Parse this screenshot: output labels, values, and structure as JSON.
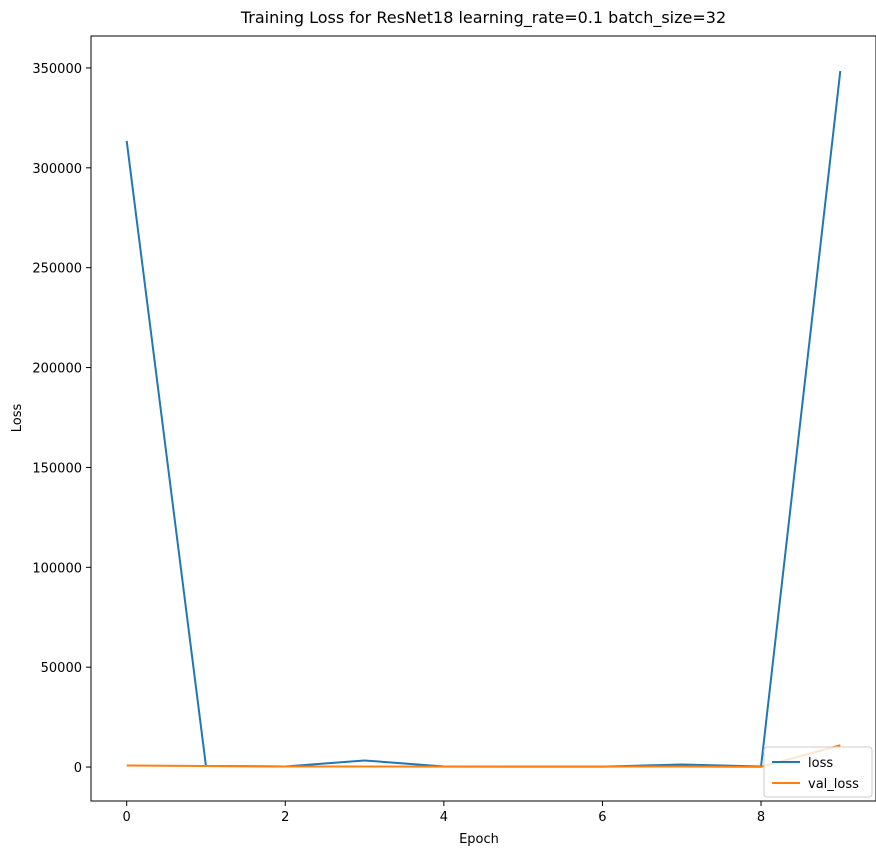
{
  "chart_data": {
    "type": "line",
    "title": "Training Loss for ResNet18 learning_rate=0.1 batch_size=32",
    "xlabel": "Epoch",
    "ylabel": "Loss",
    "x": [
      0,
      1,
      2,
      3,
      4,
      5,
      6,
      7,
      8,
      9
    ],
    "xlim": [
      -0.45,
      9.45
    ],
    "ylim": [
      -17000,
      366000
    ],
    "xticks": [
      0,
      2,
      4,
      6,
      8
    ],
    "yticks": [
      0,
      50000,
      100000,
      150000,
      200000,
      250000,
      300000,
      350000
    ],
    "grid": false,
    "legend_position": "lower right",
    "series": [
      {
        "name": "loss",
        "color": "#1f77b4",
        "values": [
          313500,
          500,
          300,
          3300,
          300,
          200,
          200,
          1300,
          300,
          348500
        ]
      },
      {
        "name": "val_loss",
        "color": "#ff7f0e",
        "values": [
          800,
          500,
          300,
          300,
          200,
          200,
          200,
          300,
          100,
          10900
        ]
      }
    ]
  }
}
